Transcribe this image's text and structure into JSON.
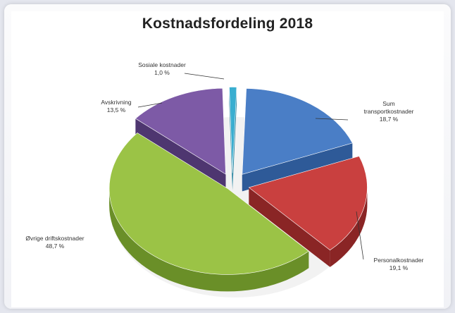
{
  "chart_data": {
    "type": "pie",
    "title": "Kostnadsfordeling 2018",
    "slices": [
      {
        "label": "Sum transportkostnader",
        "value": 18.7,
        "value_label": "18,7 %",
        "color": "#4a7ec6",
        "side": "#2e5a98"
      },
      {
        "label": "Personalkostnader",
        "value": 19.1,
        "value_label": "19,1 %",
        "color": "#c9403f",
        "side": "#8a2525"
      },
      {
        "label": "Øvrige driftskostnader",
        "value": 48.7,
        "value_label": "48,7 %",
        "color": "#9bc346",
        "side": "#6a8f28"
      },
      {
        "label": "Avskrivning",
        "value": 13.5,
        "value_label": "13,5 %",
        "color": "#7d5aa6",
        "side": "#4e3670"
      },
      {
        "label": "Sosiale kostnader",
        "value": 1.0,
        "value_label": "1,0 %",
        "color": "#3aaed0",
        "side": "#1f7f9c"
      }
    ]
  }
}
